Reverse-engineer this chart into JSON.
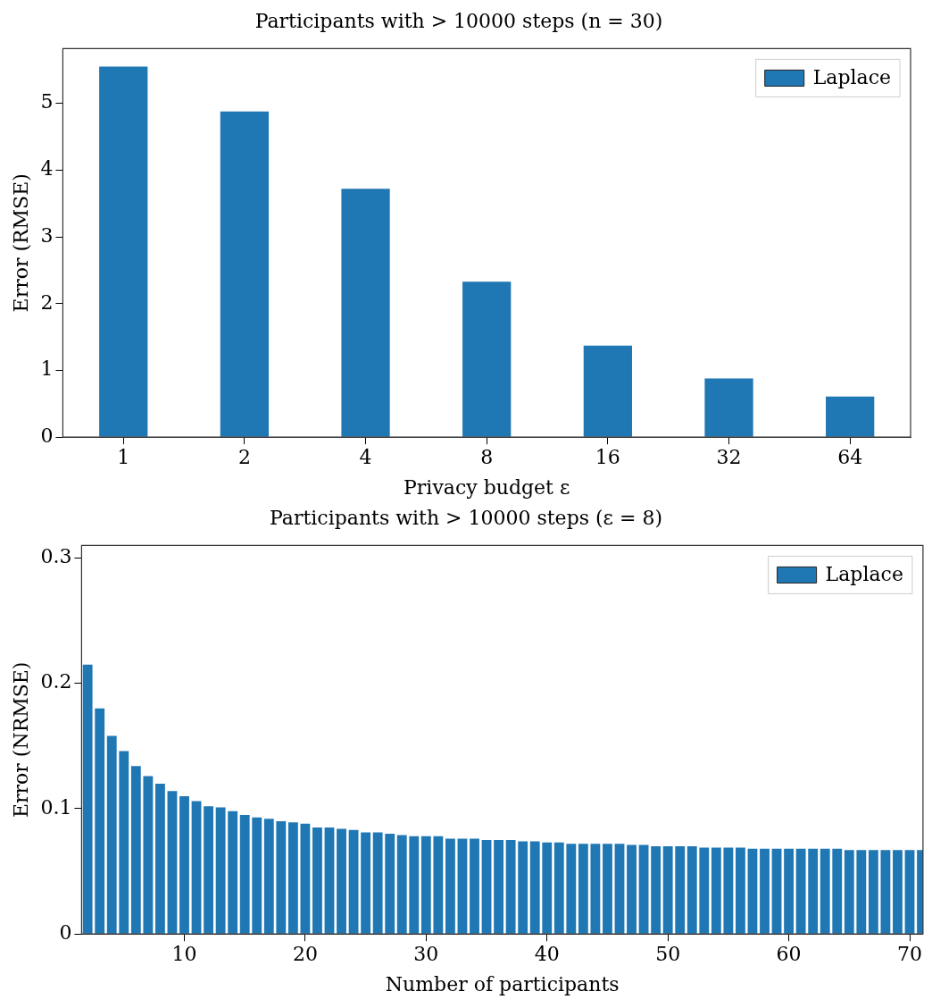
{
  "chart_data": [
    {
      "type": "bar",
      "title": "Participants with > 10000 steps (n = 30)",
      "xlabel": "Privacy budget ε",
      "ylabel": "Error (RMSE)",
      "categories": [
        "1",
        "2",
        "4",
        "8",
        "16",
        "32",
        "64"
      ],
      "series": [
        {
          "name": "Laplace",
          "color": "#1f77b4",
          "values": [
            5.55,
            4.88,
            3.72,
            2.33,
            1.37,
            0.88,
            0.61
          ]
        }
      ],
      "ylim": [
        0,
        5.82
      ],
      "yticks": [
        0,
        1,
        2,
        3,
        4,
        5
      ],
      "grid": false,
      "legend": "top right"
    },
    {
      "type": "bar",
      "title": "Participants with > 10000 steps (ε = 8)",
      "xlabel": "Number of participants",
      "ylabel": "Error (NRMSE)",
      "x": [
        2,
        3,
        4,
        5,
        6,
        7,
        8,
        9,
        10,
        11,
        12,
        13,
        14,
        15,
        16,
        17,
        18,
        19,
        20,
        21,
        22,
        23,
        24,
        25,
        26,
        27,
        28,
        29,
        30,
        31,
        32,
        33,
        34,
        35,
        36,
        37,
        38,
        39,
        40,
        41,
        42,
        43,
        44,
        45,
        46,
        47,
        48,
        49,
        50,
        51,
        52,
        53,
        54,
        55,
        56,
        57,
        58,
        59,
        60,
        61,
        62,
        63,
        64,
        65,
        66,
        67,
        68,
        69,
        70,
        71
      ],
      "series": [
        {
          "name": "Laplace",
          "color": "#1f77b4",
          "values": [
            0.215,
            0.18,
            0.158,
            0.146,
            0.134,
            0.126,
            0.12,
            0.114,
            0.11,
            0.106,
            0.102,
            0.101,
            0.098,
            0.095,
            0.093,
            0.092,
            0.09,
            0.089,
            0.088,
            0.085,
            0.085,
            0.084,
            0.083,
            0.081,
            0.081,
            0.08,
            0.079,
            0.078,
            0.078,
            0.078,
            0.076,
            0.076,
            0.076,
            0.075,
            0.075,
            0.075,
            0.074,
            0.074,
            0.073,
            0.073,
            0.072,
            0.072,
            0.072,
            0.072,
            0.072,
            0.071,
            0.071,
            0.07,
            0.07,
            0.07,
            0.07,
            0.069,
            0.069,
            0.069,
            0.069,
            0.068,
            0.068,
            0.068,
            0.068,
            0.068,
            0.068,
            0.068,
            0.068,
            0.067,
            0.067,
            0.067,
            0.067,
            0.067,
            0.067,
            0.067
          ]
        }
      ],
      "xlim": [
        1.5,
        71.1
      ],
      "xticks": [
        10,
        20,
        30,
        40,
        50,
        60,
        70
      ],
      "ylim": [
        0,
        0.31
      ],
      "yticks": [
        0,
        0.1,
        0.2,
        0.3
      ],
      "grid": false,
      "legend": "top right"
    }
  ]
}
